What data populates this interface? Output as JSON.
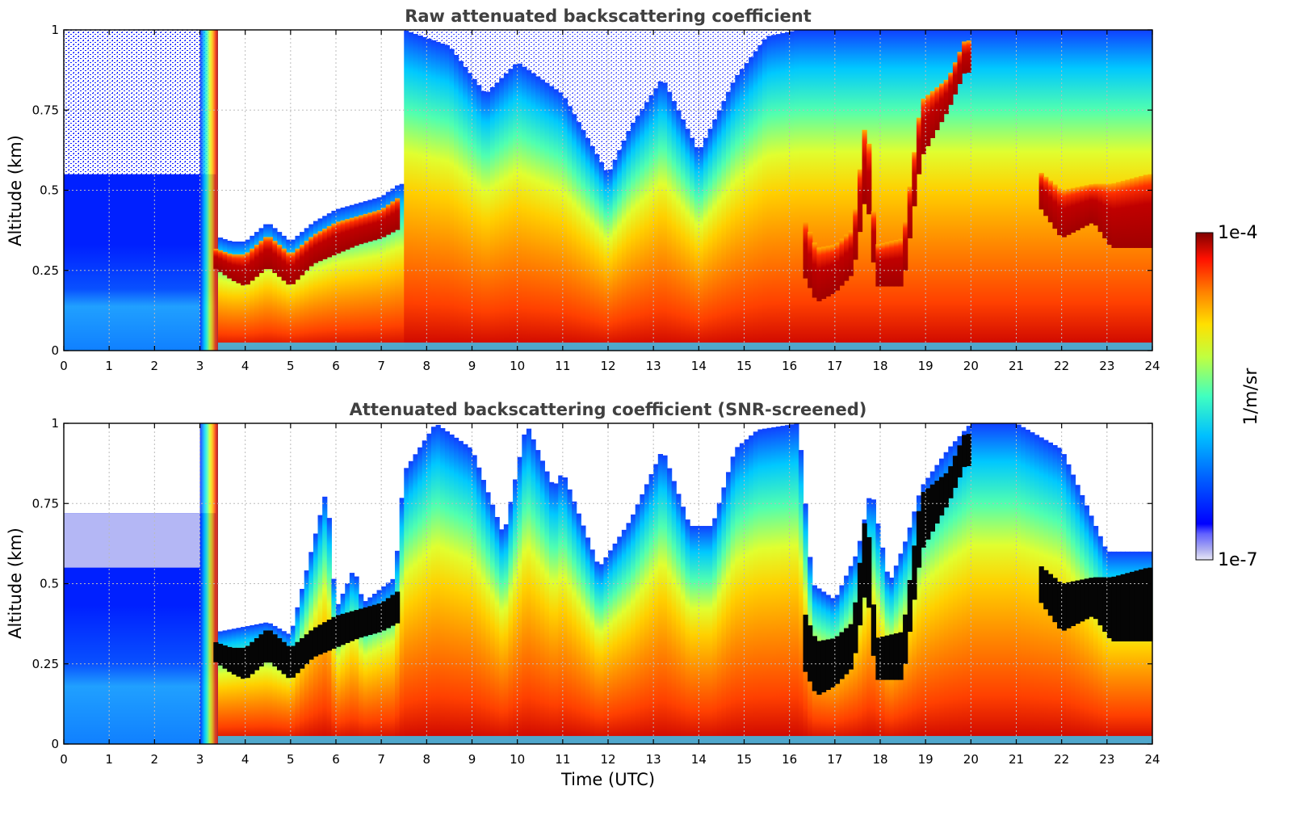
{
  "chart_data": [
    {
      "type": "heatmap",
      "title": "Raw attenuated backscattering coefficient",
      "xlabel": "",
      "ylabel": "Altitude (km)",
      "xlim": [
        0,
        24
      ],
      "ylim": [
        0,
        1
      ],
      "xticks": [
        "0",
        "1",
        "2",
        "3",
        "4",
        "5",
        "6",
        "7",
        "8",
        "9",
        "10",
        "11",
        "12",
        "13",
        "14",
        "15",
        "16",
        "17",
        "18",
        "19",
        "20",
        "21",
        "22",
        "23",
        "24"
      ],
      "yticks": [
        "0",
        "0.25",
        "0.5",
        "0.75",
        "1"
      ],
      "grid": true,
      "screened": false,
      "cloud_base_km": [
        [
          0,
          null
        ],
        [
          3.3,
          0.26
        ],
        [
          3.7,
          0.22
        ],
        [
          4.0,
          0.2
        ],
        [
          4.5,
          0.26
        ],
        [
          5.0,
          0.2
        ],
        [
          5.5,
          0.27
        ],
        [
          6.0,
          0.3
        ],
        [
          6.5,
          0.33
        ],
        [
          7.0,
          0.35
        ],
        [
          7.4,
          0.38
        ],
        [
          16.3,
          0.24
        ],
        [
          16.6,
          0.15
        ],
        [
          17.0,
          0.18
        ],
        [
          17.4,
          0.24
        ],
        [
          17.7,
          0.5
        ],
        [
          17.9,
          0.2
        ],
        [
          18.5,
          0.2
        ],
        [
          18.9,
          0.6
        ],
        [
          19.5,
          0.75
        ],
        [
          19.9,
          0.88
        ],
        [
          20.0,
          null
        ],
        [
          21.5,
          0.45
        ],
        [
          22.0,
          0.35
        ],
        [
          22.7,
          0.4
        ],
        [
          23.1,
          0.32
        ],
        [
          23.9,
          0.32
        ],
        [
          24,
          null
        ]
      ],
      "cloud_top_km": [
        [
          3.3,
          0.32
        ],
        [
          3.7,
          0.3
        ],
        [
          4.0,
          0.3
        ],
        [
          4.5,
          0.36
        ],
        [
          5.0,
          0.3
        ],
        [
          5.5,
          0.36
        ],
        [
          6.0,
          0.4
        ],
        [
          6.5,
          0.42
        ],
        [
          7.0,
          0.44
        ],
        [
          7.4,
          0.48
        ],
        [
          16.3,
          0.42
        ],
        [
          16.6,
          0.32
        ],
        [
          17.0,
          0.33
        ],
        [
          17.4,
          0.38
        ],
        [
          17.7,
          0.75
        ],
        [
          17.9,
          0.33
        ],
        [
          18.5,
          0.35
        ],
        [
          18.9,
          0.78
        ],
        [
          19.5,
          0.85
        ],
        [
          19.9,
          0.98
        ],
        [
          21.5,
          0.56
        ],
        [
          22.0,
          0.5
        ],
        [
          22.7,
          0.52
        ],
        [
          23.1,
          0.52
        ],
        [
          23.9,
          0.55
        ]
      ],
      "boundary_layer_top_km": [
        [
          7.5,
          1.0
        ],
        [
          8.5,
          0.95
        ],
        [
          9.3,
          0.8
        ],
        [
          10.0,
          0.9
        ],
        [
          11.0,
          0.8
        ],
        [
          12.0,
          0.55
        ],
        [
          12.5,
          0.7
        ],
        [
          13.2,
          0.85
        ],
        [
          14.0,
          0.62
        ],
        [
          14.8,
          0.85
        ],
        [
          15.5,
          0.98
        ],
        [
          16.2,
          1.0
        ]
      ]
    },
    {
      "type": "heatmap",
      "title": "Attenuated backscattering coefficient (SNR-screened)",
      "xlabel": "Time (UTC)",
      "ylabel": "Altitude (km)",
      "xlim": [
        0,
        24
      ],
      "ylim": [
        0,
        1
      ],
      "xticks": [
        "0",
        "1",
        "2",
        "3",
        "4",
        "5",
        "6",
        "7",
        "8",
        "9",
        "10",
        "11",
        "12",
        "13",
        "14",
        "15",
        "16",
        "17",
        "18",
        "19",
        "20",
        "21",
        "22",
        "23",
        "24"
      ],
      "yticks": [
        "0",
        "0.25",
        "0.5",
        "0.75",
        "1"
      ],
      "grid": true,
      "screened": true,
      "screened_signal_top_km": [
        [
          0,
          0.72
        ],
        [
          3.0,
          0.72
        ],
        [
          3.4,
          0.35
        ],
        [
          4.5,
          0.38
        ],
        [
          5.0,
          0.34
        ],
        [
          5.8,
          0.8
        ],
        [
          6.0,
          0.42
        ],
        [
          6.4,
          0.55
        ],
        [
          6.6,
          0.44
        ],
        [
          7.3,
          0.52
        ],
        [
          7.5,
          0.85
        ],
        [
          8.2,
          1.0
        ],
        [
          9.0,
          0.92
        ],
        [
          9.7,
          0.65
        ],
        [
          10.2,
          1.0
        ],
        [
          10.8,
          0.8
        ],
        [
          11.0,
          0.85
        ],
        [
          11.8,
          0.55
        ],
        [
          12.5,
          0.7
        ],
        [
          13.2,
          0.92
        ],
        [
          13.8,
          0.68
        ],
        [
          14.3,
          0.68
        ],
        [
          14.8,
          0.92
        ],
        [
          15.3,
          0.98
        ],
        [
          16.2,
          1.0
        ],
        [
          16.5,
          0.5
        ],
        [
          17.0,
          0.45
        ],
        [
          17.5,
          0.6
        ],
        [
          17.8,
          0.8
        ],
        [
          18.2,
          0.5
        ],
        [
          18.6,
          0.65
        ],
        [
          18.9,
          0.8
        ],
        [
          19.5,
          0.92
        ],
        [
          20.0,
          1.0
        ],
        [
          21.0,
          1.0
        ],
        [
          22.0,
          0.92
        ],
        [
          23.0,
          0.6
        ],
        [
          23.9,
          0.6
        ],
        [
          24,
          0.6
        ]
      ]
    }
  ],
  "colorbar": {
    "min_label": "1e-7",
    "max_label": "1e-4",
    "unit": "1/m/sr",
    "scale": "log",
    "colormap": "jet",
    "low_color": "#e8e8f8",
    "high_color": "#800000"
  }
}
